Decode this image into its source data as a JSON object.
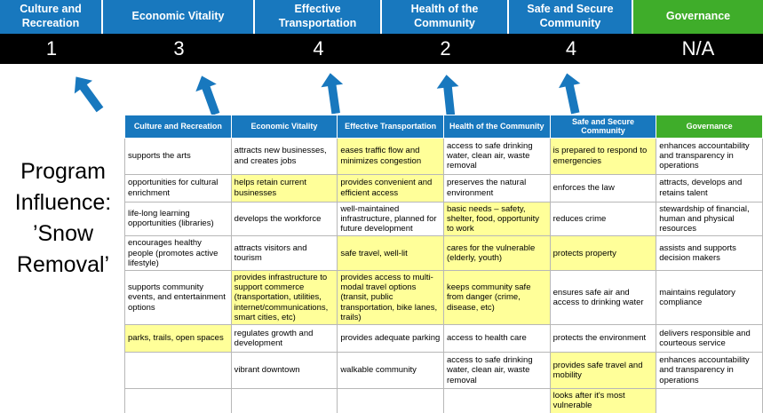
{
  "colors": {
    "header_blue": "#1878BE",
    "header_green": "#3FAD2A",
    "score_band_bg": "#000000",
    "score_text": "#FFFFFF",
    "highlight_yellow": "#FFFF99",
    "arrow_blue": "#1878BE",
    "table_border": "#B7B7B7"
  },
  "program_label": "Program\nInfluence:\n’Snow\nRemoval’",
  "scoreboard": {
    "columns": [
      {
        "label": "Culture and Recreation",
        "score": "1",
        "theme": "blue"
      },
      {
        "label": "Economic Vitality",
        "score": "3",
        "theme": "blue"
      },
      {
        "label": "Effective Transportation",
        "score": "4",
        "theme": "blue"
      },
      {
        "label": "Health of the Community",
        "score": "2",
        "theme": "blue"
      },
      {
        "label": "Safe and Secure Community",
        "score": "4",
        "theme": "blue"
      },
      {
        "label": "Governance",
        "score": "N/A",
        "theme": "green"
      }
    ]
  },
  "matrix": {
    "headers": [
      {
        "label": "Culture and Recreation",
        "theme": "blue"
      },
      {
        "label": "Economic Vitality",
        "theme": "blue"
      },
      {
        "label": "Effective Transportation",
        "theme": "blue"
      },
      {
        "label": "Health of the Community",
        "theme": "blue"
      },
      {
        "label": "Safe and Secure Community",
        "theme": "blue"
      },
      {
        "label": "Governance",
        "theme": "green"
      }
    ],
    "rows": [
      {
        "cells": [
          {
            "text": "supports the arts",
            "highlight": false
          },
          {
            "text": "attracts new businesses, and creates jobs",
            "highlight": false
          },
          {
            "text": "eases traffic flow and minimizes congestion",
            "highlight": true
          },
          {
            "text": "access to safe drinking water, clean air, waste removal",
            "highlight": false
          },
          {
            "text": "is prepared to respond to emergencies",
            "highlight": true
          },
          {
            "text": "enhances accountability and transparency in operations",
            "highlight": false
          }
        ]
      },
      {
        "cells": [
          {
            "text": "opportunities for cultural enrichment",
            "highlight": false
          },
          {
            "text": "helps retain current businesses",
            "highlight": true
          },
          {
            "text": "provides convenient and efficient access",
            "highlight": true
          },
          {
            "text": "preserves the natural environment",
            "highlight": false
          },
          {
            "text": "enforces the law",
            "highlight": false
          },
          {
            "text": "attracts, develops and retains talent",
            "highlight": false
          }
        ]
      },
      {
        "cells": [
          {
            "text": "life-long learning opportunities (libraries)",
            "highlight": false
          },
          {
            "text": "develops the workforce",
            "highlight": false
          },
          {
            "text": "well-maintained infrastructure, planned for future development",
            "highlight": false
          },
          {
            "text": "basic needs – safety, shelter, food, opportunity to work",
            "highlight": true
          },
          {
            "text": "reduces crime",
            "highlight": false
          },
          {
            "text": "stewardship of financial, human and physical resources",
            "highlight": false
          }
        ]
      },
      {
        "cells": [
          {
            "text": "encourages healthy people (promotes active lifestyle)",
            "highlight": false
          },
          {
            "text": "attracts visitors and tourism",
            "highlight": false
          },
          {
            "text": "safe travel, well-lit",
            "highlight": true
          },
          {
            "text": "cares for the vulnerable (elderly, youth)",
            "highlight": true
          },
          {
            "text": "protects property",
            "highlight": true
          },
          {
            "text": "assists and supports decision makers",
            "highlight": false
          }
        ]
      },
      {
        "cells": [
          {
            "text": "supports community events, and entertainment options",
            "highlight": false
          },
          {
            "text": "provides infrastructure to support commerce (transportation, utilities, internet/communications, smart cities, etc)",
            "highlight": true
          },
          {
            "text": "provides access to multi-modal travel options (transit, public transportation, bike lanes, trails)",
            "highlight": true
          },
          {
            "text": "keeps community safe from danger (crime, disease, etc)",
            "highlight": true
          },
          {
            "text": "ensures safe air and access to drinking water",
            "highlight": false
          },
          {
            "text": "maintains regulatory compliance",
            "highlight": false
          }
        ]
      },
      {
        "cells": [
          {
            "text": "parks, trails, open spaces",
            "highlight": true
          },
          {
            "text": "regulates growth and development",
            "highlight": false
          },
          {
            "text": "provides adequate parking",
            "highlight": false
          },
          {
            "text": "access to health care",
            "highlight": false
          },
          {
            "text": "protects the environment",
            "highlight": false
          },
          {
            "text": "delivers responsible and courteous service",
            "highlight": false
          }
        ]
      },
      {
        "cells": [
          {
            "text": "",
            "highlight": false
          },
          {
            "text": "vibrant downtown",
            "highlight": false
          },
          {
            "text": "walkable community",
            "highlight": false
          },
          {
            "text": "access to safe drinking water, clean air, waste removal",
            "highlight": false
          },
          {
            "text": "provides safe travel and mobility",
            "highlight": true
          },
          {
            "text": "enhances accountability and transparency in operations",
            "highlight": false
          }
        ]
      },
      {
        "cells": [
          {
            "text": "",
            "highlight": false
          },
          {
            "text": "",
            "highlight": false
          },
          {
            "text": "",
            "highlight": false
          },
          {
            "text": "",
            "highlight": false
          },
          {
            "text": "looks after it's most vulnerable",
            "highlight": true
          },
          {
            "text": "",
            "highlight": false
          }
        ]
      }
    ]
  }
}
